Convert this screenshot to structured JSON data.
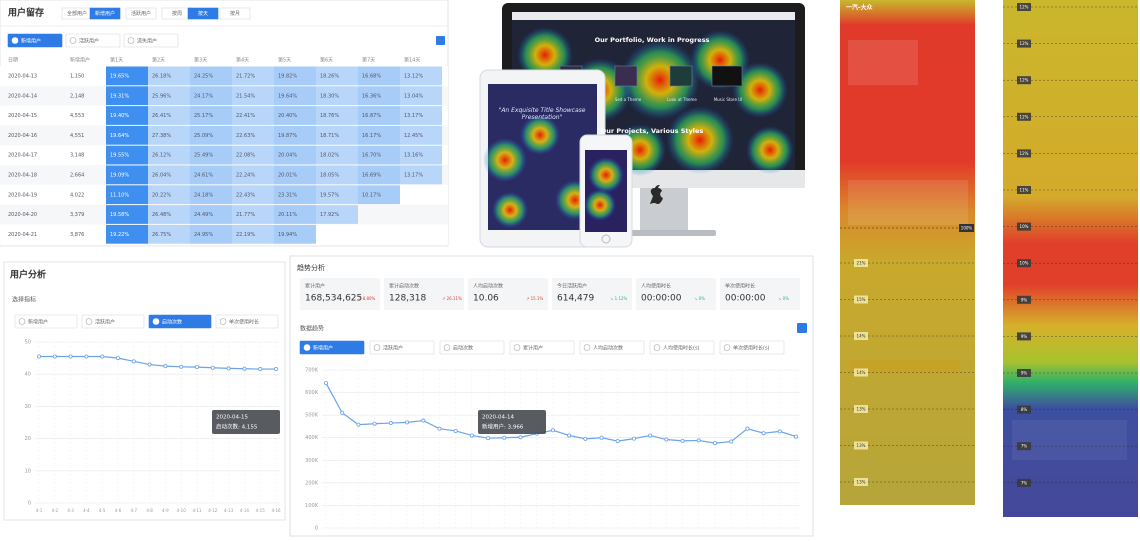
{
  "retention": {
    "title": "用户留存",
    "filters": [
      "全部用户",
      "新增用户",
      "活跃用户",
      "按周",
      "按天",
      "按月"
    ],
    "options": [
      "新增用户",
      "活跃用户",
      "流失用户"
    ],
    "columns": [
      "日期",
      "新增用户",
      "第1天",
      "第2天",
      "第3天",
      "第4天",
      "第5天",
      "第6天",
      "第7天",
      "第14天"
    ],
    "rows": [
      [
        "2020-04-13",
        "1,150",
        "19.65%",
        "26.18%",
        "24.25%",
        "21.72%",
        "19.82%",
        "18.26%",
        "16.68%",
        "13.12%"
      ],
      [
        "2020-04-14",
        "2,148",
        "19.31%",
        "25.96%",
        "24.17%",
        "21.54%",
        "19.64%",
        "18.30%",
        "16.36%",
        "13.04%"
      ],
      [
        "2020-04-15",
        "4,553",
        "19.40%",
        "26.41%",
        "25.17%",
        "22.41%",
        "20.40%",
        "18.76%",
        "16.87%",
        "13.17%"
      ],
      [
        "2020-04-16",
        "4,551",
        "19.64%",
        "27.38%",
        "25.09%",
        "22.63%",
        "19.87%",
        "18.71%",
        "16.17%",
        "12.45%"
      ],
      [
        "2020-04-17",
        "3,148",
        "19.55%",
        "26.12%",
        "25.49%",
        "22.08%",
        "20.04%",
        "18.02%",
        "16.70%",
        "13.16%"
      ],
      [
        "2020-04-18",
        "2,664",
        "19.09%",
        "26.04%",
        "24.61%",
        "22.24%",
        "20.01%",
        "18.05%",
        "16.69%",
        "13.17%"
      ],
      [
        "2020-04-19",
        "4,022",
        "11.10%",
        "20.22%",
        "24.18%",
        "22.43%",
        "23.31%",
        "19.57%",
        "10.17%"
      ],
      [
        "2020-04-20",
        "3,379",
        "19.58%",
        "26.48%",
        "24.49%",
        "21.77%",
        "20.11%",
        "17.92%"
      ],
      [
        "2020-04-21",
        "3,876",
        "19.22%",
        "26.75%",
        "24.95%",
        "22.19%",
        "19.94%"
      ]
    ]
  },
  "showcase": {
    "headline": "Our Portfolio, Work in Progress",
    "tablet_title": "\"An Exquisite Title Showcase Presentation\"",
    "section_title": "Our Projects, Various Styles",
    "card_labels": [
      "Sed a Theme",
      "Look at Theme",
      "Music Store UI"
    ]
  },
  "chart_data": [
    {
      "type": "line",
      "title": "用户分析",
      "subtitle": "选择指标",
      "options": [
        "新增用户",
        "活跃用户",
        "启动次数",
        "单次使用时长"
      ],
      "selected_option": 2,
      "categories": [
        "4-1",
        "4-2",
        "4-3",
        "4-4",
        "4-5",
        "4-6",
        "4-7",
        "4-8",
        "4-9",
        "4-10",
        "4-11",
        "4-12",
        "4-13",
        "4-14",
        "4-15",
        "4-16"
      ],
      "values": [
        45.5,
        45.5,
        45.5,
        45.5,
        45.5,
        45.0,
        44.0,
        43.0,
        42.5,
        42.3,
        42.2,
        42.0,
        41.8,
        41.7,
        41.6,
        41.6
      ],
      "color": "#6aa3e8",
      "ylim": [
        0,
        50
      ],
      "yticks": [
        0,
        10,
        20,
        30,
        40,
        50
      ],
      "grid": true,
      "tooltip": [
        "2020-04-15",
        "启动次数: 4,155"
      ]
    },
    {
      "type": "line",
      "title": "趋势分析",
      "kpis": [
        {
          "label": "累计用户",
          "value": "168,534,625",
          "change": "↗ 8.80%"
        },
        {
          "label": "累计启动次数",
          "value": "128,318",
          "change": "↗ 26.11%"
        },
        {
          "label": "人均启动次数",
          "value": "10.06",
          "change": "↗ 15.1%"
        },
        {
          "label": "今日活跃用户",
          "value": "614,479",
          "change": "↘ 1.12%"
        },
        {
          "label": "人均使用时长",
          "value": "00:00:00",
          "change": "↘ 0%"
        },
        {
          "label": "单次使用时长",
          "value": "00:00:00",
          "change": "↘ 0%"
        }
      ],
      "section": "数据趋势",
      "options": [
        "新增用户",
        "活跃用户",
        "启动次数",
        "累计用户",
        "人均启动次数",
        "人均使用时长(s)",
        "单次使用时长(s)"
      ],
      "selected_option": 0,
      "categories": [
        null,
        null,
        null,
        null,
        null,
        null,
        null,
        null,
        null,
        null,
        null,
        null,
        null,
        null,
        null,
        null,
        null,
        null,
        null,
        null,
        null,
        null,
        null,
        null,
        null,
        null,
        null,
        null,
        null,
        null
      ],
      "values": [
        642000,
        510000,
        458000,
        462000,
        465000,
        468000,
        476000,
        440000,
        430000,
        410000,
        398000,
        400000,
        402000,
        418000,
        433000,
        410000,
        395000,
        400000,
        385000,
        396000,
        410000,
        392000,
        386000,
        388000,
        376000,
        383000,
        440000,
        420000,
        428000,
        405000
      ],
      "color": "#6aa3e8",
      "ylim": [
        0,
        700000
      ],
      "yticks": [
        0,
        {
          "value": 100000,
          "label": "100K"
        },
        {
          "value": 200000,
          "label": "200K"
        },
        {
          "value": 300000,
          "label": "300K"
        },
        {
          "value": 400000,
          "label": "400K"
        },
        {
          "value": 500000,
          "label": "500K"
        },
        {
          "value": 600000,
          "label": "600K"
        },
        {
          "value": 700000,
          "label": "700K"
        }
      ],
      "grid": true,
      "tooltip": [
        "2020-04-14",
        "新增用户: 3,966"
      ]
    }
  ],
  "scroll_maps": [
    {
      "brand": "一汽-大众",
      "top_marker": "100%",
      "markers": [
        "21%",
        "15%",
        "14%",
        "14%",
        "13%",
        "13%",
        "13%"
      ]
    },
    {
      "markers": [
        "12%",
        "12%",
        "12%",
        "12%",
        "12%",
        "11%",
        "10%",
        "10%",
        "9%",
        "9%",
        "9%",
        "8%",
        "7%",
        "7%"
      ]
    }
  ]
}
